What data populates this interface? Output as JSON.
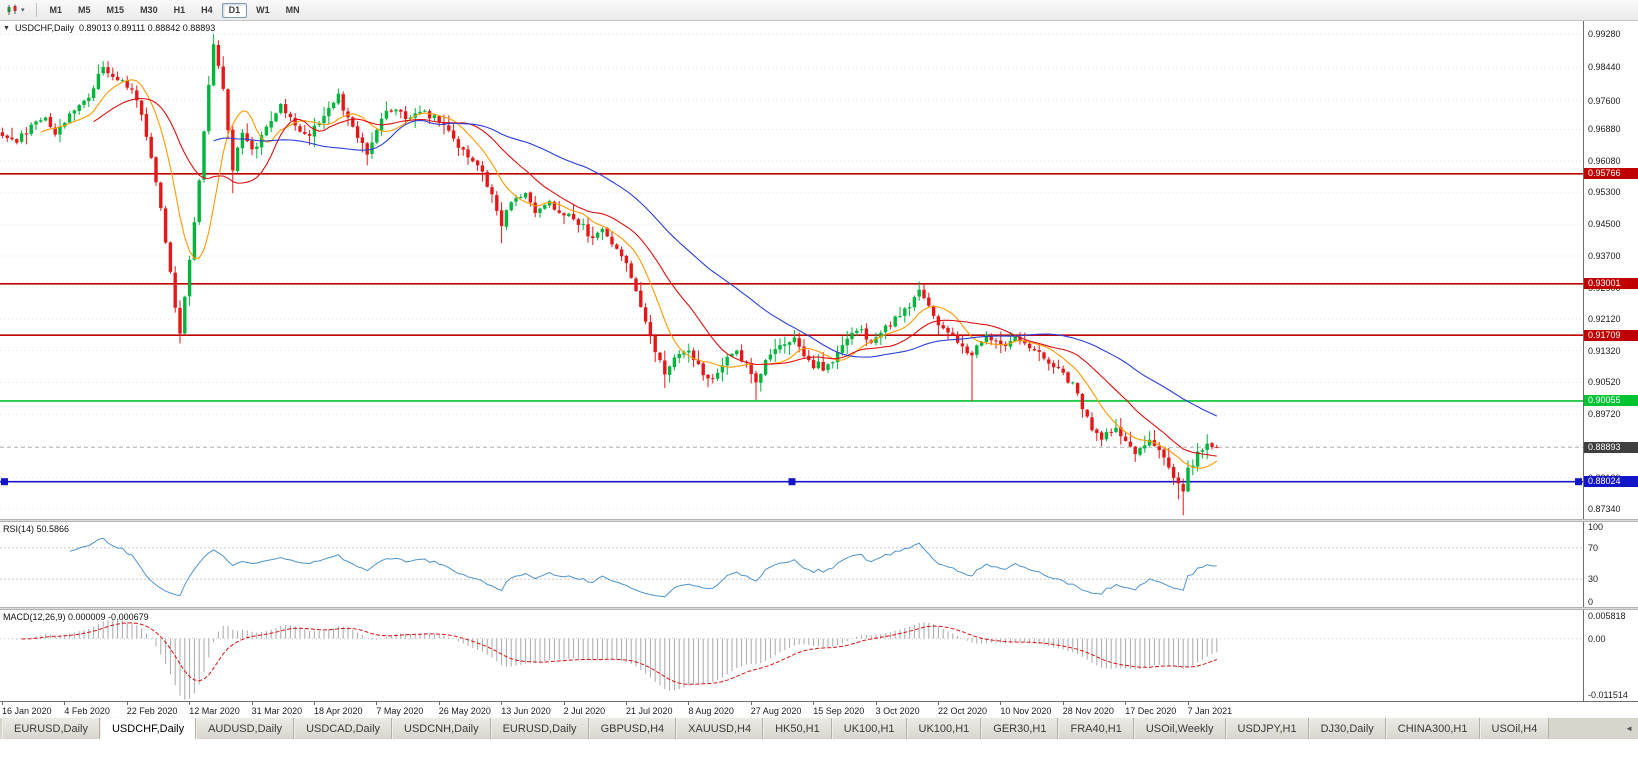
{
  "toolbar": {
    "chart_type_caret": "▾",
    "timeframes": [
      "M1",
      "M5",
      "M15",
      "M30",
      "H1",
      "H4",
      "D1",
      "W1",
      "MN"
    ],
    "active_timeframe": "D1"
  },
  "chart": {
    "collapse_icon": "▼",
    "symbol_label": "USDCHF,Daily",
    "ohlc": "0.89013 0.89111 0.88842 0.88893"
  },
  "price_axis": {
    "ticks": [
      "0.99280",
      "0.98440",
      "0.97600",
      "0.96880",
      "0.96080",
      "0.95300",
      "0.94500",
      "0.93700",
      "0.92900",
      "0.92120",
      "0.91320",
      "0.90520",
      "0.89720",
      "0.88930",
      "0.88130",
      "0.87340"
    ]
  },
  "levels": [
    {
      "value": 0.95766,
      "label": "0.95766",
      "color": "#c00000",
      "type": "resistance"
    },
    {
      "value": 0.93001,
      "label": "0.93001",
      "color": "#c00000",
      "type": "resistance"
    },
    {
      "value": 0.91709,
      "label": "0.91709",
      "color": "#c00000",
      "type": "resistance"
    },
    {
      "value": 0.90055,
      "label": "0.90055",
      "color": "#00c432",
      "type": "support"
    },
    {
      "value": 0.88024,
      "label": "0.88024",
      "color": "#1414c8",
      "type": "support",
      "handles": true
    }
  ],
  "current_price": {
    "value": 0.88893,
    "label": "0.88893",
    "bg": "#3f3f3f"
  },
  "rsi": {
    "title": "RSI(14) 50.5866",
    "period": 14,
    "current": 50.5866,
    "levels": [
      "100",
      "70",
      "30",
      "0"
    ],
    "level_values": [
      100,
      70,
      30,
      0
    ],
    "color": "#4f94cd"
  },
  "macd": {
    "title": "MACD(12,26,9) 0.000009 -0.000679",
    "fast": 12,
    "slow": 26,
    "signal": 9,
    "main_value": 9e-06,
    "signal_value": -0.000679,
    "axis_labels": [
      "0.005818",
      "0.00",
      "-0.011514"
    ],
    "axis_top": 0.005818,
    "axis_bottom": -0.011514,
    "hist_color": "#a8a8a8",
    "signal_color": "#dd1111"
  },
  "date_axis": [
    "16 Jan 2020",
    "4 Feb 2020",
    "22 Feb 2020",
    "12 Mar 2020",
    "31 Mar 2020",
    "18 Apr 2020",
    "7 May 2020",
    "26 May 2020",
    "13 Jun 2020",
    "2 Jul 2020",
    "21 Jul 2020",
    "8 Aug 2020",
    "27 Aug 2020",
    "15 Sep 2020",
    "3 Oct 2020",
    "22 Oct 2020",
    "10 Nov 2020",
    "28 Nov 2020",
    "17 Dec 2020",
    "7 Jan 2021"
  ],
  "tabs": {
    "items": [
      "EURUSD,Daily",
      "USDCHF,Daily",
      "AUDUSD,Daily",
      "USDCAD,Daily",
      "USDCNH,Daily",
      "EURUSD,Daily",
      "GBPUSD,H4",
      "XAUUSD,H4",
      "HK50,H1",
      "UK100,H1",
      "UK100,H1",
      "GER30,H1",
      "FRA40,H1",
      "USOil,Weekly",
      "USDJPY,H1",
      "DJ30,Daily",
      "CHINA300,H1",
      "USOil,H4"
    ],
    "active_index": 1,
    "scroll_icon": "◄"
  },
  "chart_data": {
    "type": "candlestick",
    "symbol": "USDCHF",
    "timeframe": "Daily",
    "title": "USDCHF,Daily 0.89013 0.89111 0.88842 0.88893",
    "candle_count": 254,
    "candles_per_date_label": 13,
    "value_at_pane_top": 0.99607,
    "value_at_pane_bottom": 0.87087,
    "seed": 11,
    "colors": {
      "up": "#00b43c",
      "down": "#e41818",
      "ma_fast": "#ff9a00",
      "ma_mid": "#dd1111",
      "ma_slow": "#2b3fd6",
      "grid": "#e2e2e2"
    },
    "moving_averages": [
      {
        "period": 9,
        "colorKey": "ma_fast"
      },
      {
        "period": 20,
        "colorKey": "ma_mid"
      },
      {
        "period": 45,
        "colorKey": "ma_slow"
      }
    ],
    "keyframes": [
      {
        "i": 0,
        "c": 0.9672
      },
      {
        "i": 3,
        "c": 0.9655
      },
      {
        "i": 6,
        "c": 0.97
      },
      {
        "i": 9,
        "c": 0.9718
      },
      {
        "i": 11,
        "c": 0.9675
      },
      {
        "i": 14,
        "c": 0.9728
      },
      {
        "i": 18,
        "c": 0.9768
      },
      {
        "i": 21,
        "c": 0.9845,
        "h": 0.9856
      },
      {
        "i": 24,
        "c": 0.9812
      },
      {
        "i": 27,
        "c": 0.9788
      },
      {
        "i": 29,
        "c": 0.9725
      },
      {
        "i": 32,
        "c": 0.9555
      },
      {
        "i": 35,
        "c": 0.933
      },
      {
        "i": 37,
        "c": 0.9175,
        "l": 0.915
      },
      {
        "i": 39,
        "c": 0.936
      },
      {
        "i": 41,
        "c": 0.956
      },
      {
        "i": 43,
        "c": 0.98
      },
      {
        "i": 44,
        "c": 0.9902,
        "h": 0.9928
      },
      {
        "i": 46,
        "c": 0.979
      },
      {
        "i": 48,
        "c": 0.9585,
        "l": 0.9528
      },
      {
        "i": 50,
        "c": 0.968
      },
      {
        "i": 52,
        "c": 0.9638
      },
      {
        "i": 55,
        "c": 0.9695
      },
      {
        "i": 58,
        "c": 0.9752
      },
      {
        "i": 61,
        "c": 0.9698
      },
      {
        "i": 64,
        "c": 0.9672
      },
      {
        "i": 67,
        "c": 0.9722
      },
      {
        "i": 70,
        "c": 0.9778
      },
      {
        "i": 73,
        "c": 0.9695
      },
      {
        "i": 76,
        "c": 0.9625,
        "l": 0.9598
      },
      {
        "i": 79,
        "c": 0.9715
      },
      {
        "i": 82,
        "c": 0.9738
      },
      {
        "i": 85,
        "c": 0.9718
      },
      {
        "i": 88,
        "c": 0.9735
      },
      {
        "i": 91,
        "c": 0.9705
      },
      {
        "i": 94,
        "c": 0.9665
      },
      {
        "i": 97,
        "c": 0.9618
      },
      {
        "i": 100,
        "c": 0.9582
      },
      {
        "i": 102,
        "c": 0.9525
      },
      {
        "i": 104,
        "c": 0.9445,
        "l": 0.9402
      },
      {
        "i": 106,
        "c": 0.9505
      },
      {
        "i": 109,
        "c": 0.9528
      },
      {
        "i": 111,
        "c": 0.9478
      },
      {
        "i": 114,
        "c": 0.9508
      },
      {
        "i": 117,
        "c": 0.9472
      },
      {
        "i": 120,
        "c": 0.9448
      },
      {
        "i": 123,
        "c": 0.9415
      },
      {
        "i": 125,
        "c": 0.9438
      },
      {
        "i": 128,
        "c": 0.9388
      },
      {
        "i": 130,
        "c": 0.9352
      },
      {
        "i": 132,
        "c": 0.9282
      },
      {
        "i": 134,
        "c": 0.9205
      },
      {
        "i": 136,
        "c": 0.9128
      },
      {
        "i": 138,
        "c": 0.9072,
        "l": 0.9038
      },
      {
        "i": 140,
        "c": 0.9115
      },
      {
        "i": 143,
        "c": 0.9132
      },
      {
        "i": 145,
        "c": 0.9098
      },
      {
        "i": 147,
        "c": 0.9062,
        "l": 0.904
      },
      {
        "i": 150,
        "c": 0.9095
      },
      {
        "i": 153,
        "c": 0.9132
      },
      {
        "i": 155,
        "c": 0.9102
      },
      {
        "i": 157,
        "c": 0.9052,
        "l": 0.9008
      },
      {
        "i": 160,
        "c": 0.9122
      },
      {
        "i": 163,
        "c": 0.9148
      },
      {
        "i": 165,
        "c": 0.9165,
        "h": 0.9172
      },
      {
        "i": 168,
        "c": 0.9108
      },
      {
        "i": 171,
        "c": 0.9082
      },
      {
        "i": 174,
        "c": 0.9128
      },
      {
        "i": 178,
        "c": 0.9182
      },
      {
        "i": 181,
        "c": 0.9152
      },
      {
        "i": 184,
        "c": 0.9195
      },
      {
        "i": 188,
        "c": 0.9238
      },
      {
        "i": 191,
        "c": 0.9285,
        "h": 0.9302
      },
      {
        "i": 193,
        "c": 0.9245
      },
      {
        "i": 196,
        "c": 0.9188
      },
      {
        "i": 199,
        "c": 0.9152
      },
      {
        "i": 202,
        "c": 0.912,
        "l": 0.9005
      },
      {
        "i": 205,
        "c": 0.9172
      },
      {
        "i": 208,
        "c": 0.9148
      },
      {
        "i": 211,
        "c": 0.9168
      },
      {
        "i": 214,
        "c": 0.9138
      },
      {
        "i": 217,
        "c": 0.9112
      },
      {
        "i": 220,
        "c": 0.9088
      },
      {
        "i": 223,
        "c": 0.9052
      },
      {
        "i": 225,
        "c": 0.8985
      },
      {
        "i": 227,
        "c": 0.8932
      },
      {
        "i": 229,
        "c": 0.8908,
        "l": 0.8892
      },
      {
        "i": 232,
        "c": 0.8938
      },
      {
        "i": 234,
        "c": 0.8905
      },
      {
        "i": 236,
        "c": 0.8872,
        "l": 0.8852
      },
      {
        "i": 239,
        "c": 0.8908
      },
      {
        "i": 241,
        "c": 0.8882
      },
      {
        "i": 243,
        "c": 0.8838
      },
      {
        "i": 245,
        "c": 0.8798,
        "l": 0.8758
      },
      {
        "i": 246,
        "c": 0.8778,
        "l": 0.8718
      },
      {
        "i": 247,
        "c": 0.8838
      },
      {
        "i": 249,
        "c": 0.8878
      },
      {
        "i": 251,
        "c": 0.8898,
        "h": 0.8922
      },
      {
        "i": 253,
        "c": 0.88893
      }
    ]
  }
}
